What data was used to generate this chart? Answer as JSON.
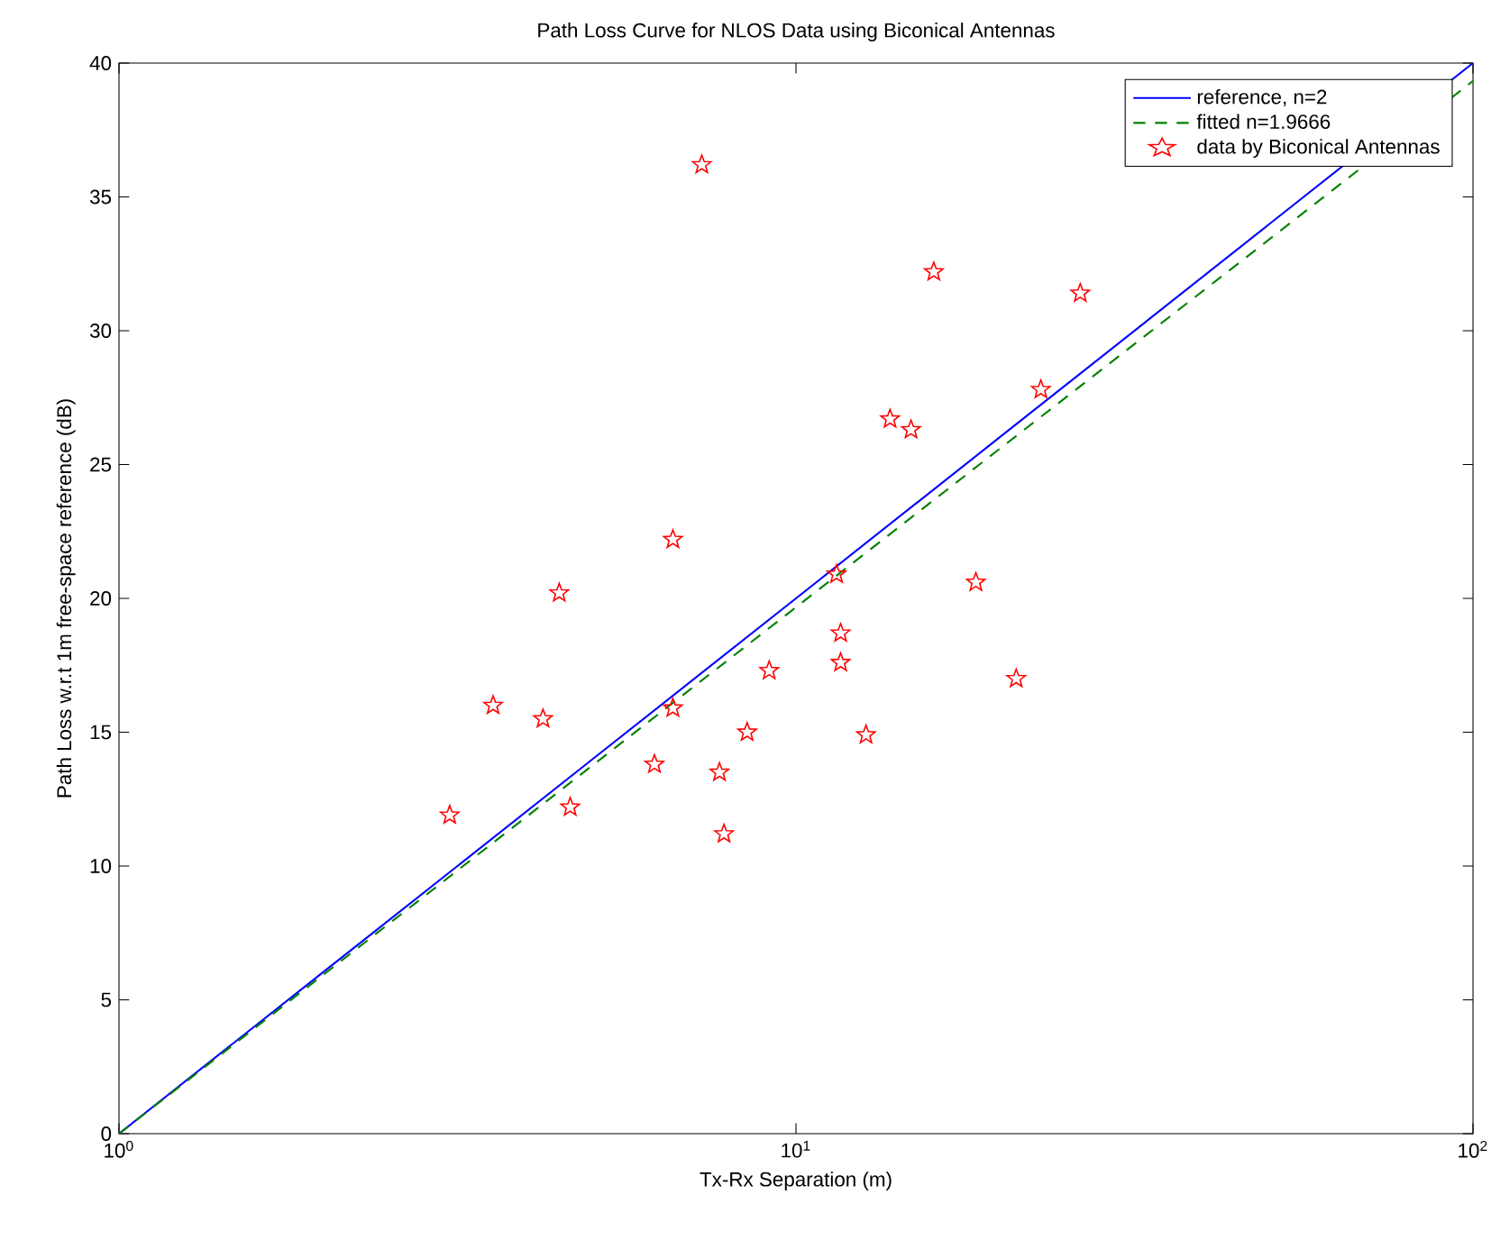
{
  "chart_data": {
    "type": "scatter",
    "title": "Path Loss Curve for NLOS Data using Biconical Antennas",
    "xlabel": "Tx-Rx Separation (m)",
    "ylabel": "Path Loss w.r.t 1m free-space reference (dB)",
    "log": "x",
    "xlim": [
      1,
      100
    ],
    "ylim": [
      0,
      40
    ],
    "xticks": [
      {
        "value": 1,
        "label": "10$^{0}$"
      },
      {
        "value": 10,
        "label": "10$^{1}$"
      },
      {
        "value": 100,
        "label": "10$^{2}$"
      }
    ],
    "yticks": [
      0,
      5,
      10,
      15,
      20,
      25,
      30,
      35,
      40
    ],
    "grid": false,
    "legend": "top right",
    "series": [
      {
        "name": "reference, n=2",
        "type": "line",
        "color": "#0000ff",
        "line_style": "solid",
        "marker": "none",
        "x": [
          1,
          2,
          5,
          10,
          20,
          50,
          100
        ],
        "values": [
          0,
          6.02,
          13.98,
          20,
          26.02,
          33.98,
          40
        ]
      },
      {
        "name": "fitted n=1.9666",
        "type": "line",
        "color": "#008000",
        "line_style": "dashed",
        "marker": "none",
        "x": [
          1,
          2,
          5,
          10,
          20,
          50,
          100
        ],
        "values": [
          0,
          5.92,
          13.75,
          19.67,
          25.59,
          33.41,
          39.33
        ]
      },
      {
        "name": "data by Biconical Antennas",
        "color": "#ff0000",
        "marker": "star",
        "x": [
          3.08,
          3.57,
          4.23,
          4.47,
          4.64,
          6.18,
          6.58,
          6.58,
          7.26,
          7.71,
          7.83,
          8.47,
          9.13,
          11.48,
          11.64,
          11.64,
          12.69,
          13.77,
          14.79,
          15.98,
          18.44,
          21.15,
          23.0,
          26.3
        ],
        "values": [
          11.9,
          16.0,
          15.5,
          20.2,
          12.2,
          13.8,
          22.2,
          15.9,
          36.2,
          13.5,
          11.2,
          15.0,
          17.3,
          20.9,
          18.7,
          17.6,
          14.9,
          26.7,
          26.3,
          32.2,
          20.6,
          17.0,
          27.8,
          31.4
        ]
      }
    ]
  }
}
